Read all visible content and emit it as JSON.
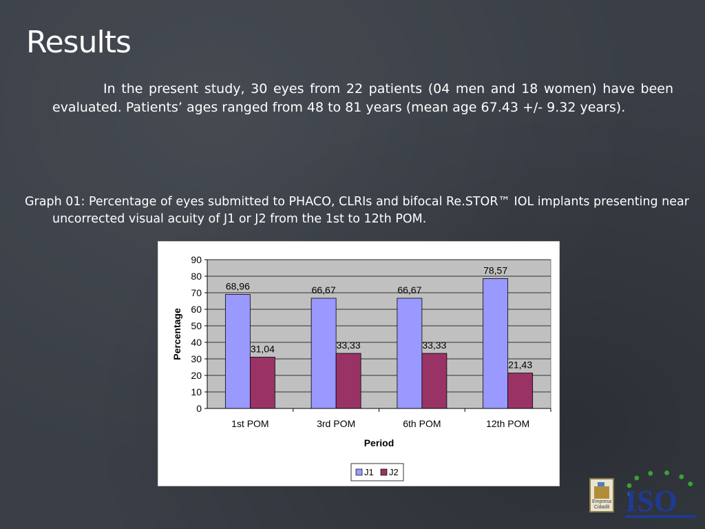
{
  "slide": {
    "title": "Results",
    "intro": "In the present study, 30 eyes from 22 patients (04 men and 18 women) have been evaluated. Patients’ ages ranged from 48 to 81 years (mean age 67.43 +/- 9.32 years).",
    "caption": "Graph 01: Percentage of eyes submitted to PHACO, CLRIs and bifocal Re.STOR™ IOL implants presenting near uncorrected visual acuity of J1 or J2 from the 1st to 12th POM."
  },
  "logos": {
    "left_label": "Empresa Cidadã",
    "iso_text": "ISO"
  },
  "chart_data": {
    "type": "bar",
    "categories": [
      "1st POM",
      "3rd POM",
      "6th POM",
      "12th POM"
    ],
    "series": [
      {
        "name": "J1",
        "values": [
          68.96,
          66.67,
          66.67,
          78.57
        ],
        "labels": [
          "68,96",
          "66,67",
          "66,67",
          "78,57"
        ],
        "color": "#9999ff"
      },
      {
        "name": "J2",
        "values": [
          31.04,
          33.33,
          33.33,
          21.43
        ],
        "labels": [
          "31,04",
          "33,33",
          "33,33",
          "21,43"
        ],
        "color": "#993366"
      }
    ],
    "title": "",
    "xlabel": "Period",
    "ylabel": "Percentage",
    "ylim": [
      0,
      90
    ],
    "yticks": [
      0,
      10,
      20,
      30,
      40,
      50,
      60,
      70,
      80,
      90
    ],
    "grid": true,
    "legend": "bottom",
    "plot_background": "#c0c0c0"
  }
}
